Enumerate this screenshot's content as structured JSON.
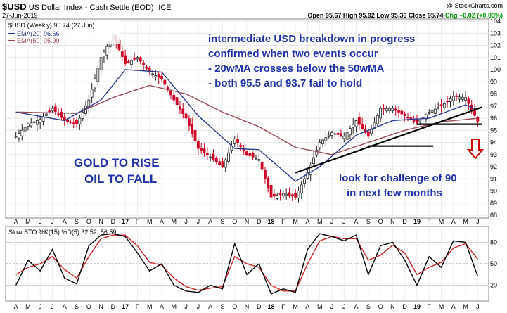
{
  "header": {
    "symbol": "$USD",
    "name": "US Dollar Index - Cash Settle (EOD)",
    "exchange": "ICE",
    "date": "27-Jun-2019",
    "brand": "@ StockCharts.com",
    "ohlc": "Open 95.67  High 95.92  Low 95.36  Close 95.74",
    "chg": "Chg +0.02 (+0.03%)"
  },
  "legend": {
    "main": "$USD (Weekly) 95.74 (27 Jun)",
    "ema20": "EMA(20) 96.66",
    "ema50": "EMA(50) 95.99",
    "sto": "Slow STO %K(15) %D(5) 32.52, 56.59"
  },
  "annotations": {
    "line1": "intermediate USD breakdown in progress",
    "line2": "confirmed when two events occur",
    "line3": "- 20wMA crosses below the 50wMA",
    "line4": "- both 95.5 and 93.7 fail to hold",
    "gold": "GOLD TO RISE",
    "oil": "OIL TO FALL",
    "look1": "look for challenge of 90",
    "look2": "in next few months"
  },
  "colors": {
    "up": "#222222",
    "down": "#cc0022",
    "ema20": "#2a3a8c",
    "ema50": "#9a4a55",
    "annot": "#2233aa",
    "arrow": "#cc0000"
  },
  "chart_data": {
    "type": "candlestick",
    "title": "$USD US Dollar Index - Cash Settle (EOD)",
    "ylim": [
      88,
      104
    ],
    "y_ticks": [
      88,
      89,
      90,
      91,
      92,
      93,
      94,
      95,
      96,
      97,
      98,
      99,
      100,
      101,
      102,
      103,
      104
    ],
    "x_ticks": [
      "A",
      "M",
      "J",
      "J",
      "A",
      "S",
      "O",
      "N",
      "D",
      "17",
      "F",
      "M",
      "A",
      "M",
      "J",
      "J",
      "A",
      "S",
      "O",
      "N",
      "D",
      "18",
      "F",
      "M",
      "A",
      "M",
      "J",
      "J",
      "A",
      "S",
      "O",
      "N",
      "D",
      "19",
      "F",
      "M",
      "A",
      "M",
      "J"
    ],
    "close_anchors": [
      {
        "date": "2016-04",
        "value": 94.5
      },
      {
        "date": "2016-05",
        "value": 95.5
      },
      {
        "date": "2016-06",
        "value": 95.9
      },
      {
        "date": "2016-07",
        "value": 96.8
      },
      {
        "date": "2016-08",
        "value": 95.8
      },
      {
        "date": "2016-09",
        "value": 95.5
      },
      {
        "date": "2016-10",
        "value": 97.5
      },
      {
        "date": "2016-11",
        "value": 101.0
      },
      {
        "date": "2016-12",
        "value": 102.8
      },
      {
        "date": "2017-01",
        "value": 100.5
      },
      {
        "date": "2017-02",
        "value": 101.0
      },
      {
        "date": "2017-03",
        "value": 99.8
      },
      {
        "date": "2017-04",
        "value": 99.2
      },
      {
        "date": "2017-05",
        "value": 97.5
      },
      {
        "date": "2017-06",
        "value": 96.0
      },
      {
        "date": "2017-07",
        "value": 93.5
      },
      {
        "date": "2017-08",
        "value": 92.8
      },
      {
        "date": "2017-09",
        "value": 92.0
      },
      {
        "date": "2017-10",
        "value": 94.3
      },
      {
        "date": "2017-11",
        "value": 93.0
      },
      {
        "date": "2017-12",
        "value": 92.6
      },
      {
        "date": "2018-01",
        "value": 89.5
      },
      {
        "date": "2018-02",
        "value": 89.8
      },
      {
        "date": "2018-03",
        "value": 89.5
      },
      {
        "date": "2018-04",
        "value": 91.5
      },
      {
        "date": "2018-05",
        "value": 94.0
      },
      {
        "date": "2018-06",
        "value": 94.8
      },
      {
        "date": "2018-07",
        "value": 94.5
      },
      {
        "date": "2018-08",
        "value": 95.8
      },
      {
        "date": "2018-09",
        "value": 94.5
      },
      {
        "date": "2018-10",
        "value": 96.8
      },
      {
        "date": "2018-11",
        "value": 96.8
      },
      {
        "date": "2018-12",
        "value": 96.2
      },
      {
        "date": "2019-01",
        "value": 95.6
      },
      {
        "date": "2019-02",
        "value": 96.5
      },
      {
        "date": "2019-03",
        "value": 97.0
      },
      {
        "date": "2019-04",
        "value": 97.8
      },
      {
        "date": "2019-05",
        "value": 97.7
      },
      {
        "date": "2019-06",
        "value": 95.74
      }
    ],
    "ema20_anchors": [
      {
        "date": "2016-04",
        "value": 96.5
      },
      {
        "date": "2016-08",
        "value": 95.8
      },
      {
        "date": "2016-11",
        "value": 97.5
      },
      {
        "date": "2017-01",
        "value": 100.0
      },
      {
        "date": "2017-04",
        "value": 99.8
      },
      {
        "date": "2017-07",
        "value": 96.2
      },
      {
        "date": "2017-10",
        "value": 93.5
      },
      {
        "date": "2017-12",
        "value": 93.4
      },
      {
        "date": "2018-03",
        "value": 90.8
      },
      {
        "date": "2018-05",
        "value": 92.0
      },
      {
        "date": "2018-08",
        "value": 94.6
      },
      {
        "date": "2018-11",
        "value": 95.8
      },
      {
        "date": "2019-02",
        "value": 96.0
      },
      {
        "date": "2019-05",
        "value": 97.1
      },
      {
        "date": "2019-06",
        "value": 96.66
      }
    ],
    "ema50_anchors": [
      {
        "date": "2016-04",
        "value": 96.5
      },
      {
        "date": "2016-09",
        "value": 96.4
      },
      {
        "date": "2016-12",
        "value": 97.7
      },
      {
        "date": "2017-03",
        "value": 98.7
      },
      {
        "date": "2017-06",
        "value": 98.0
      },
      {
        "date": "2017-09",
        "value": 96.5
      },
      {
        "date": "2017-12",
        "value": 95.3
      },
      {
        "date": "2018-03",
        "value": 93.6
      },
      {
        "date": "2018-06",
        "value": 93.0
      },
      {
        "date": "2018-09",
        "value": 94.0
      },
      {
        "date": "2018-12",
        "value": 95.0
      },
      {
        "date": "2019-03",
        "value": 95.7
      },
      {
        "date": "2019-06",
        "value": 95.99
      }
    ],
    "slow_sto": {
      "ylim": [
        0,
        100
      ],
      "y_ticks": [
        20,
        50,
        80
      ],
      "k_anchors": [
        {
          "date": "2016-04",
          "value": 20
        },
        {
          "date": "2016-05",
          "value": 55
        },
        {
          "date": "2016-06",
          "value": 40
        },
        {
          "date": "2016-07",
          "value": 70
        },
        {
          "date": "2016-08",
          "value": 30
        },
        {
          "date": "2016-09",
          "value": 22
        },
        {
          "date": "2016-10",
          "value": 75
        },
        {
          "date": "2016-11",
          "value": 90
        },
        {
          "date": "2016-12",
          "value": 92
        },
        {
          "date": "2017-01",
          "value": 88
        },
        {
          "date": "2017-02",
          "value": 65
        },
        {
          "date": "2017-03",
          "value": 40
        },
        {
          "date": "2017-04",
          "value": 50
        },
        {
          "date": "2017-05",
          "value": 20
        },
        {
          "date": "2017-06",
          "value": 12
        },
        {
          "date": "2017-07",
          "value": 10
        },
        {
          "date": "2017-08",
          "value": 20
        },
        {
          "date": "2017-09",
          "value": 15
        },
        {
          "date": "2017-10",
          "value": 78
        },
        {
          "date": "2017-11",
          "value": 35
        },
        {
          "date": "2017-12",
          "value": 50
        },
        {
          "date": "2018-01",
          "value": 8
        },
        {
          "date": "2018-02",
          "value": 15
        },
        {
          "date": "2018-03",
          "value": 10
        },
        {
          "date": "2018-04",
          "value": 70
        },
        {
          "date": "2018-05",
          "value": 92
        },
        {
          "date": "2018-06",
          "value": 88
        },
        {
          "date": "2018-07",
          "value": 82
        },
        {
          "date": "2018-08",
          "value": 90
        },
        {
          "date": "2018-09",
          "value": 35
        },
        {
          "date": "2018-10",
          "value": 75
        },
        {
          "date": "2018-11",
          "value": 80
        },
        {
          "date": "2018-12",
          "value": 55
        },
        {
          "date": "2019-01",
          "value": 20
        },
        {
          "date": "2019-02",
          "value": 60
        },
        {
          "date": "2019-03",
          "value": 45
        },
        {
          "date": "2019-04",
          "value": 82
        },
        {
          "date": "2019-05",
          "value": 80
        },
        {
          "date": "2019-06",
          "value": 32.52
        }
      ],
      "d_anchors": [
        {
          "date": "2016-04",
          "value": 35
        },
        {
          "date": "2016-05",
          "value": 45
        },
        {
          "date": "2016-06",
          "value": 50
        },
        {
          "date": "2016-07",
          "value": 60
        },
        {
          "date": "2016-08",
          "value": 42
        },
        {
          "date": "2016-09",
          "value": 30
        },
        {
          "date": "2016-10",
          "value": 60
        },
        {
          "date": "2016-11",
          "value": 85
        },
        {
          "date": "2016-12",
          "value": 90
        },
        {
          "date": "2017-01",
          "value": 90
        },
        {
          "date": "2017-02",
          "value": 75
        },
        {
          "date": "2017-03",
          "value": 52
        },
        {
          "date": "2017-04",
          "value": 48
        },
        {
          "date": "2017-05",
          "value": 30
        },
        {
          "date": "2017-06",
          "value": 18
        },
        {
          "date": "2017-07",
          "value": 13
        },
        {
          "date": "2017-08",
          "value": 16
        },
        {
          "date": "2017-09",
          "value": 18
        },
        {
          "date": "2017-10",
          "value": 60
        },
        {
          "date": "2017-11",
          "value": 50
        },
        {
          "date": "2017-12",
          "value": 45
        },
        {
          "date": "2018-01",
          "value": 20
        },
        {
          "date": "2018-02",
          "value": 12
        },
        {
          "date": "2018-03",
          "value": 12
        },
        {
          "date": "2018-04",
          "value": 50
        },
        {
          "date": "2018-05",
          "value": 82
        },
        {
          "date": "2018-06",
          "value": 88
        },
        {
          "date": "2018-07",
          "value": 85
        },
        {
          "date": "2018-08",
          "value": 85
        },
        {
          "date": "2018-09",
          "value": 55
        },
        {
          "date": "2018-10",
          "value": 62
        },
        {
          "date": "2018-11",
          "value": 76
        },
        {
          "date": "2018-12",
          "value": 65
        },
        {
          "date": "2019-01",
          "value": 35
        },
        {
          "date": "2019-02",
          "value": 45
        },
        {
          "date": "2019-03",
          "value": 52
        },
        {
          "date": "2019-04",
          "value": 72
        },
        {
          "date": "2019-05",
          "value": 78
        },
        {
          "date": "2019-06",
          "value": 56.59
        }
      ]
    },
    "trendlines": [
      {
        "from": {
          "date": "2018-03",
          "value": 91.5
        },
        "to": {
          "date": "2019-06",
          "value": 96.9
        }
      },
      {
        "from": {
          "date": "2018-09",
          "value": 93.7
        },
        "to": {
          "date": "2019-02",
          "value": 93.7
        }
      },
      {
        "from": {
          "date": "2019-01",
          "value": 95.5
        },
        "to": {
          "date": "2019-06",
          "value": 95.5
        }
      }
    ]
  }
}
